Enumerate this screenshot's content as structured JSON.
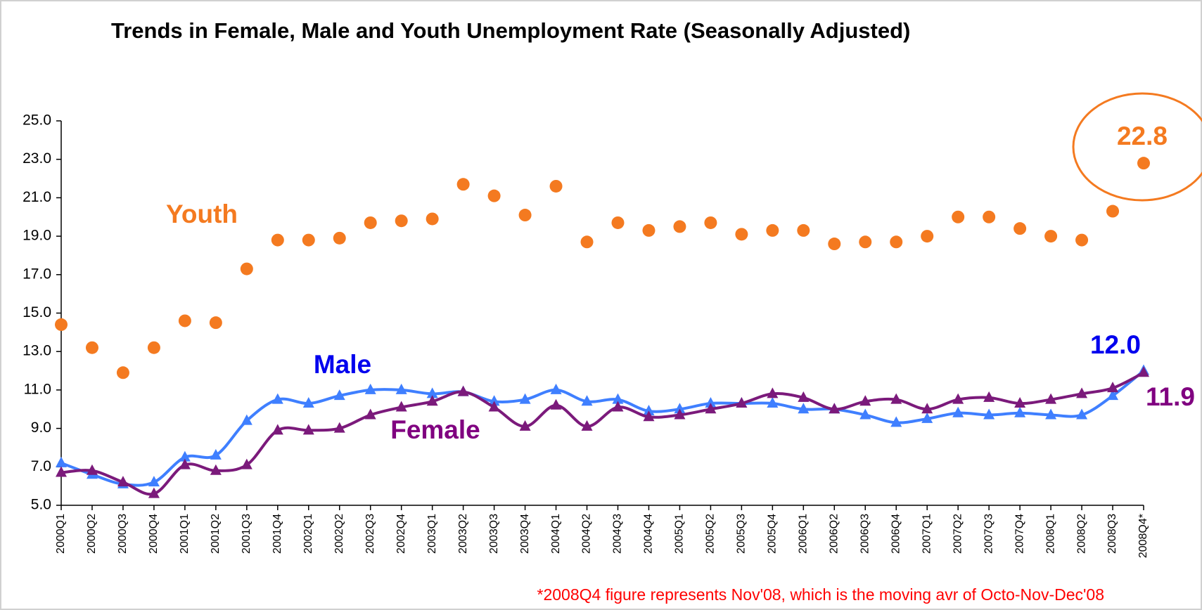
{
  "chart_data": {
    "type": "line",
    "title": "Trends in Female, Male and Youth Unemployment Rate (Seasonally Adjusted)",
    "note": "*2008Q4 figure represents Nov'08, which is the moving avr of Octo-Nov-Dec'08",
    "categories": [
      "2000Q1",
      "2000Q2",
      "2000Q3",
      "2000Q4",
      "2001Q1",
      "2001Q2",
      "2001Q3",
      "2001Q4",
      "2002Q1",
      "2002Q2",
      "2002Q3",
      "2002Q4",
      "2003Q1",
      "2003Q2",
      "2003Q3",
      "2003Q4",
      "2004Q1",
      "2004Q2",
      "2004Q3",
      "2004Q4",
      "2005Q1",
      "2005Q2",
      "2005Q3",
      "2005Q4",
      "2006Q1",
      "2006Q2",
      "2006Q3",
      "2006Q4",
      "2007Q1",
      "2007Q2",
      "2007Q3",
      "2007Q4",
      "2008Q1",
      "2008Q2",
      "2008Q3",
      "2008Q4*"
    ],
    "series": [
      {
        "name": "Youth",
        "color": "#f47a20",
        "line": false,
        "values": [
          14.4,
          13.2,
          11.9,
          13.2,
          14.6,
          14.5,
          17.3,
          18.8,
          18.8,
          18.9,
          19.7,
          19.8,
          19.9,
          21.7,
          21.1,
          20.1,
          21.6,
          18.7,
          19.7,
          19.3,
          19.5,
          19.7,
          19.1,
          19.3,
          19.3,
          18.6,
          18.7,
          18.7,
          19.0,
          20.0,
          20.0,
          19.4,
          19.0,
          18.8,
          20.3,
          22.8
        ],
        "value_labels": [
          null,
          null,
          null,
          null,
          null,
          null,
          null,
          null,
          null,
          null,
          null,
          null,
          null,
          null,
          null,
          null,
          null,
          null,
          null,
          null,
          null,
          null,
          null,
          null,
          null,
          null,
          null,
          null,
          null,
          null,
          null,
          null,
          null,
          null,
          null,
          "22.8"
        ]
      },
      {
        "name": "Male",
        "color": "#3f7fff",
        "label_color": "#0000ee",
        "line": true,
        "values": [
          7.2,
          6.6,
          6.1,
          6.2,
          7.5,
          7.6,
          9.4,
          10.5,
          10.3,
          10.7,
          11.0,
          11.0,
          10.8,
          10.9,
          10.4,
          10.5,
          11.0,
          10.4,
          10.5,
          9.9,
          10.0,
          10.3,
          10.3,
          10.3,
          10.0,
          10.0,
          9.7,
          9.3,
          9.5,
          9.8,
          9.7,
          9.8,
          9.7,
          9.7,
          10.7,
          12.0
        ],
        "value_labels": [
          null,
          null,
          null,
          null,
          null,
          null,
          null,
          null,
          null,
          null,
          null,
          null,
          null,
          null,
          null,
          null,
          null,
          null,
          null,
          null,
          null,
          null,
          null,
          null,
          null,
          null,
          null,
          null,
          null,
          null,
          null,
          null,
          null,
          null,
          null,
          "12.0"
        ]
      },
      {
        "name": "Female",
        "color": "#7b1a7b",
        "label_color": "#800080",
        "line": true,
        "values": [
          6.7,
          6.8,
          6.2,
          5.6,
          7.1,
          6.8,
          7.1,
          8.9,
          8.9,
          9.0,
          9.7,
          10.1,
          10.4,
          10.9,
          10.1,
          9.1,
          10.2,
          9.1,
          10.1,
          9.6,
          9.7,
          10.0,
          10.3,
          10.8,
          10.6,
          10.0,
          10.4,
          10.5,
          10.0,
          10.5,
          10.6,
          10.3,
          10.5,
          10.8,
          11.1,
          11.9
        ],
        "value_labels": [
          null,
          null,
          null,
          null,
          null,
          null,
          null,
          null,
          null,
          null,
          null,
          null,
          null,
          null,
          null,
          null,
          null,
          null,
          null,
          null,
          null,
          null,
          null,
          null,
          null,
          null,
          null,
          null,
          null,
          null,
          null,
          null,
          null,
          null,
          null,
          "11.9"
        ]
      }
    ],
    "ylim": [
      5,
      25
    ],
    "yticks": [
      {
        "value": 5,
        "label": "5.0"
      },
      {
        "value": 7,
        "label": "7.0"
      },
      {
        "value": 9,
        "label": "9.0"
      },
      {
        "value": 11,
        "label": "11.0"
      },
      {
        "value": 13,
        "label": "13.0"
      },
      {
        "value": 15,
        "label": "15.0"
      },
      {
        "value": 17,
        "label": "17.0"
      },
      {
        "value": 19,
        "label": "19.0"
      },
      {
        "value": 21,
        "label": "21.0"
      },
      {
        "value": 23,
        "label": "23.0"
      },
      {
        "value": 25,
        "label": "25.0"
      }
    ],
    "grid": false
  }
}
